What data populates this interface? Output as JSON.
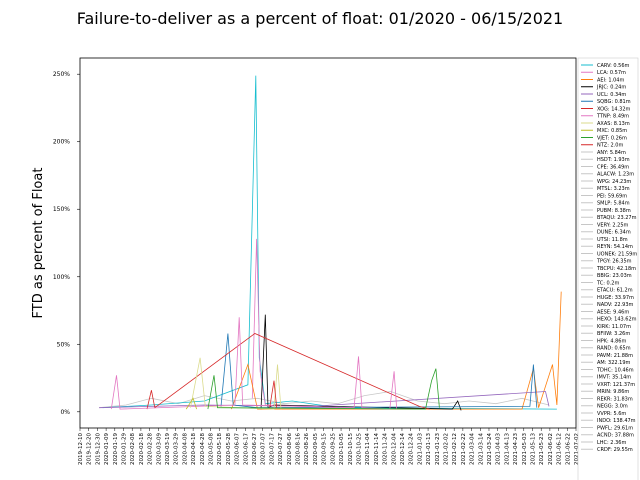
{
  "chart_data": {
    "type": "line",
    "title": "Failure-to-deliver as a percent of float: 01/2020 - 06/15/2021",
    "xlabel": "",
    "ylabel": "FTD as percent of Float",
    "ylim": [
      -0.12,
      2.62
    ],
    "yticks": [
      {
        "value": 0.0,
        "label": "0%"
      },
      {
        "value": 0.5,
        "label": "50%"
      },
      {
        "value": 1.0,
        "label": "100%"
      },
      {
        "value": 1.5,
        "label": "150%"
      },
      {
        "value": 2.0,
        "label": "200%"
      },
      {
        "value": 2.5,
        "label": "250%"
      }
    ],
    "xticks": [
      "2019-12-10",
      "2019-12-20",
      "2019-12-30",
      "2020-01-09",
      "2020-01-19",
      "2020-01-29",
      "2020-02-08",
      "2020-02-18",
      "2020-02-28",
      "2020-03-09",
      "2020-03-19",
      "2020-03-29",
      "2020-04-08",
      "2020-04-18",
      "2020-04-28",
      "2020-05-08",
      "2020-05-18",
      "2020-05-28",
      "2020-06-07",
      "2020-06-17",
      "2020-06-27",
      "2020-07-07",
      "2020-07-17",
      "2020-07-27",
      "2020-08-06",
      "2020-08-16",
      "2020-08-26",
      "2020-09-05",
      "2020-09-15",
      "2020-09-25",
      "2020-10-05",
      "2020-10-15",
      "2020-10-25",
      "2020-11-04",
      "2020-11-14",
      "2020-11-24",
      "2020-12-04",
      "2020-12-14",
      "2020-12-24",
      "2021-01-03",
      "2021-01-13",
      "2021-01-23",
      "2021-02-02",
      "2021-02-12",
      "2021-02-22",
      "2021-03-04",
      "2021-03-14",
      "2021-03-24",
      "2021-04-03",
      "2021-04-13",
      "2021-04-23",
      "2021-05-03",
      "2021-05-13",
      "2021-05-23",
      "2021-06-02",
      "2021-06-12",
      "2021-06-22",
      "2021-07-02"
    ],
    "xlim": [
      "2019-12-10",
      "2021-07-02"
    ],
    "grid": false,
    "legend": "outside-right",
    "series": [
      {
        "name": "CARV: 0.56m",
        "color": "#17becf",
        "points": [
          [
            "2020-01-05",
            0.03
          ],
          [
            "2020-03-01",
            0.05
          ],
          [
            "2020-05-01",
            0.08
          ],
          [
            "2020-06-20",
            0.2
          ],
          [
            "2020-06-29",
            2.49
          ],
          [
            "2020-07-03",
            0.4
          ],
          [
            "2020-07-10",
            0.06
          ],
          [
            "2020-08-10",
            0.08
          ],
          [
            "2020-10-01",
            0.03
          ],
          [
            "2021-06-10",
            0.02
          ]
        ]
      },
      {
        "name": "LCA: 0.57m",
        "color": "#e377c2",
        "points": [
          [
            "2020-06-25",
            0.1
          ],
          [
            "2020-06-30",
            1.28
          ],
          [
            "2020-07-04",
            0.3
          ],
          [
            "2020-07-10",
            0.05
          ],
          [
            "2020-10-01",
            0.03
          ]
        ]
      },
      {
        "name": "AEI: 1.04m",
        "color": "#ff7f0e",
        "points": [
          [
            "2020-06-01",
            0.02
          ],
          [
            "2020-06-20",
            0.35
          ],
          [
            "2020-07-01",
            0.02
          ],
          [
            "2021-05-01",
            0.02
          ],
          [
            "2021-05-14",
            0.32
          ],
          [
            "2021-05-20",
            0.03
          ],
          [
            "2021-06-05",
            0.35
          ],
          [
            "2021-06-10",
            0.05
          ],
          [
            "2021-06-15",
            0.89
          ]
        ]
      },
      {
        "name": "JRJC: 0.24m",
        "color": "#000000",
        "points": [
          [
            "2020-07-05",
            0.02
          ],
          [
            "2020-07-10",
            0.72
          ],
          [
            "2020-07-13",
            0.03
          ],
          [
            "2020-07-20",
            0.05
          ],
          [
            "2021-02-10",
            0.02
          ],
          [
            "2021-02-16",
            0.08
          ],
          [
            "2021-02-20",
            0.01
          ]
        ]
      },
      {
        "name": "UCL: 0.34m",
        "color": "#9467bd",
        "points": [
          [
            "2020-01-01",
            0.03
          ],
          [
            "2020-05-01",
            0.05
          ],
          [
            "2020-09-01",
            0.04
          ],
          [
            "2021-05-28",
            0.15
          ],
          [
            "2021-06-01",
            0.04
          ]
        ]
      },
      {
        "name": "SQBG: 0.81m",
        "color": "#1f77b4",
        "points": [
          [
            "2020-05-20",
            0.04
          ],
          [
            "2020-05-28",
            0.58
          ],
          [
            "2020-06-03",
            0.05
          ],
          [
            "2020-07-01",
            0.03
          ],
          [
            "2021-05-10",
            0.04
          ],
          [
            "2021-05-14",
            0.35
          ],
          [
            "2021-05-18",
            0.03
          ]
        ]
      },
      {
        "name": "XOG: 14.32m",
        "color": "#d62728",
        "points": [
          [
            "2020-02-25",
            0.02
          ],
          [
            "2020-03-01",
            0.16
          ],
          [
            "2020-03-05",
            0.03
          ],
          [
            "2020-06-28",
            0.58
          ],
          [
            "2021-01-03",
            0.04
          ],
          [
            "2021-01-15",
            0.02
          ]
        ]
      },
      {
        "name": "TTNP: 8.49m",
        "color": "#e377c2",
        "points": [
          [
            "2020-01-15",
            0.02
          ],
          [
            "2020-01-21",
            0.27
          ],
          [
            "2020-01-25",
            0.02
          ],
          [
            "2020-06-05",
            0.05
          ],
          [
            "2020-06-10",
            0.7
          ],
          [
            "2020-06-14",
            0.05
          ],
          [
            "2020-10-20",
            0.03
          ],
          [
            "2020-10-25",
            0.41
          ],
          [
            "2020-10-29",
            0.03
          ],
          [
            "2020-11-30",
            0.02
          ],
          [
            "2020-12-05",
            0.3
          ],
          [
            "2020-12-08",
            0.02
          ]
        ]
      },
      {
        "name": "AXAS: 8.13m",
        "color": "#dbdb8d",
        "points": [
          [
            "2020-04-15",
            0.03
          ],
          [
            "2020-04-26",
            0.4
          ],
          [
            "2020-05-02",
            0.04
          ],
          [
            "2020-07-20",
            0.02
          ],
          [
            "2020-07-24",
            0.35
          ],
          [
            "2020-07-28",
            0.02
          ]
        ]
      },
      {
        "name": "MXC: 0.85m",
        "color": "#bcbd22",
        "points": [
          [
            "2020-04-10",
            0.02
          ],
          [
            "2020-04-18",
            0.1
          ],
          [
            "2020-04-22",
            0.02
          ]
        ]
      },
      {
        "name": "VJET: 0.26m",
        "color": "#2ca02c",
        "points": [
          [
            "2020-05-05",
            0.02
          ],
          [
            "2020-05-12",
            0.27
          ],
          [
            "2020-05-16",
            0.03
          ],
          [
            "2021-01-10",
            0.02
          ],
          [
            "2021-01-17",
            0.23
          ],
          [
            "2021-01-22",
            0.32
          ],
          [
            "2021-01-26",
            0.03
          ]
        ]
      },
      {
        "name": "NTZ: 2.0m",
        "color": "#d62728",
        "points": [
          [
            "2020-07-15",
            0.03
          ],
          [
            "2020-07-20",
            0.23
          ],
          [
            "2020-07-23",
            0.03
          ]
        ]
      },
      {
        "name": "ANY: 5.84m",
        "color": "#c7c7c7",
        "points": [
          [
            "2020-01-01",
            0.03
          ],
          [
            "2020-02-01",
            0.05
          ],
          [
            "2020-03-01",
            0.1
          ],
          [
            "2020-04-01",
            0.06
          ],
          [
            "2020-05-01",
            0.12
          ],
          [
            "2020-06-01",
            0.08
          ],
          [
            "2020-07-01",
            0.1
          ],
          [
            "2020-08-01",
            0.06
          ],
          [
            "2020-09-01",
            0.08
          ],
          [
            "2020-10-01",
            0.06
          ],
          [
            "2020-11-01",
            0.12
          ],
          [
            "2020-12-01",
            0.15
          ],
          [
            "2021-01-01",
            0.08
          ],
          [
            "2021-02-01",
            0.06
          ],
          [
            "2021-03-01",
            0.08
          ],
          [
            "2021-04-01",
            0.06
          ],
          [
            "2021-05-01",
            0.1
          ],
          [
            "2021-06-01",
            0.05
          ]
        ]
      },
      {
        "name": "HSDT: 1.93m",
        "color": "#c7c7c7",
        "points": []
      },
      {
        "name": "CPE: 36.49m",
        "color": "#c7c7c7",
        "points": []
      },
      {
        "name": "ALACW: 1.23m",
        "color": "#c7c7c7",
        "points": []
      },
      {
        "name": "WPG: 24.23m",
        "color": "#c7c7c7",
        "points": []
      },
      {
        "name": "MTSL: 3.23m",
        "color": "#c7c7c7",
        "points": []
      },
      {
        "name": "PEI: 59.69m",
        "color": "#c7c7c7",
        "points": []
      },
      {
        "name": "SMLP: 5.84m",
        "color": "#c7c7c7",
        "points": []
      },
      {
        "name": "PUBM: 8.38m",
        "color": "#c7c7c7",
        "points": []
      },
      {
        "name": "BTAQU: 23.27m",
        "color": "#c7c7c7",
        "points": []
      },
      {
        "name": "VERY: 2.25m",
        "color": "#c7c7c7",
        "points": []
      },
      {
        "name": "DUNE: 6.34m",
        "color": "#c7c7c7",
        "points": []
      },
      {
        "name": "UTSI: 11.8m",
        "color": "#c7c7c7",
        "points": []
      },
      {
        "name": "REYN: 54.14m",
        "color": "#c7c7c7",
        "points": []
      },
      {
        "name": "UONEK: 21.59m",
        "color": "#c7c7c7",
        "points": []
      },
      {
        "name": "TPGY: 26.35m",
        "color": "#c7c7c7",
        "points": []
      },
      {
        "name": "TBCPU: 42.18m",
        "color": "#c7c7c7",
        "points": []
      },
      {
        "name": "BBIG: 23.03m",
        "color": "#c7c7c7",
        "points": []
      },
      {
        "name": "TC: 0.2m",
        "color": "#c7c7c7",
        "points": []
      },
      {
        "name": "ETACU: 61.2m",
        "color": "#c7c7c7",
        "points": []
      },
      {
        "name": "HUGE: 33.97m",
        "color": "#c7c7c7",
        "points": []
      },
      {
        "name": "NADV: 22.93m",
        "color": "#c7c7c7",
        "points": []
      },
      {
        "name": "AESE: 9.46m",
        "color": "#c7c7c7",
        "points": []
      },
      {
        "name": "HEXO: 143.62m",
        "color": "#c7c7c7",
        "points": []
      },
      {
        "name": "KIRK: 11.07m",
        "color": "#c7c7c7",
        "points": []
      },
      {
        "name": "BFIIW: 3.26m",
        "color": "#c7c7c7",
        "points": []
      },
      {
        "name": "HPK: 4.86m",
        "color": "#c7c7c7",
        "points": []
      },
      {
        "name": "RAND: 0.65m",
        "color": "#c7c7c7",
        "points": []
      },
      {
        "name": "PAVM: 21.88m",
        "color": "#c7c7c7",
        "points": []
      },
      {
        "name": "AM: 322.19m",
        "color": "#c7c7c7",
        "points": []
      },
      {
        "name": "TDHC: 10.46m",
        "color": "#c7c7c7",
        "points": []
      },
      {
        "name": "IMVT: 35.14m",
        "color": "#c7c7c7",
        "points": []
      },
      {
        "name": "VXRT: 121.37m",
        "color": "#c7c7c7",
        "points": []
      },
      {
        "name": "MRIN: 9.86m",
        "color": "#c7c7c7",
        "points": []
      },
      {
        "name": "REKR: 31.83m",
        "color": "#c7c7c7",
        "points": []
      },
      {
        "name": "NEGG: 3.0m",
        "color": "#c7c7c7",
        "points": []
      },
      {
        "name": "VVPR: 5.6m",
        "color": "#c7c7c7",
        "points": []
      },
      {
        "name": "INDO: 138.47m",
        "color": "#c7c7c7",
        "points": []
      },
      {
        "name": "PWFL: 29.61m",
        "color": "#c7c7c7",
        "points": []
      },
      {
        "name": "ACND: 37.88m",
        "color": "#c7c7c7",
        "points": []
      },
      {
        "name": "LHC: 2.36m",
        "color": "#c7c7c7",
        "points": []
      },
      {
        "name": "CRDF: 29.55m",
        "color": "#c7c7c7",
        "points": []
      }
    ]
  }
}
